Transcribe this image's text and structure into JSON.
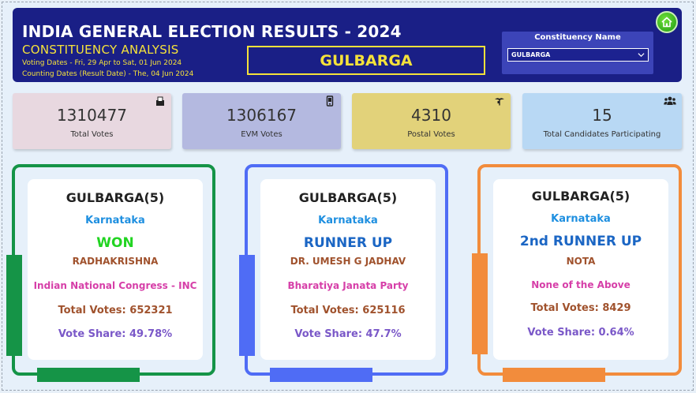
{
  "header": {
    "title": "INDIA GENERAL ELECTION RESULTS - 2024",
    "subtitle": "CONSTITUENCY ANALYSIS",
    "voting_dates": "Voting Dates - Fri, 29 Apr to Sat, 01 Jun 2024",
    "counting_dates": "Counting Dates (Result Date) - The, 04 Jun 2024",
    "constituency_display": "GULBARGA",
    "home_icon": "home-icon"
  },
  "slicer": {
    "label": "Constituency Name",
    "selected": "GULBARGA"
  },
  "kpis": [
    {
      "value": "1310477",
      "label": "Total Votes",
      "icon": "ballot-box-icon",
      "bg": "#e8d8e0"
    },
    {
      "value": "1306167",
      "label": "EVM Votes",
      "icon": "evm-device-icon",
      "bg": "#b4b9e0"
    },
    {
      "value": "4310",
      "label": "Postal Votes",
      "icon": "postal-icon",
      "bg": "#e2d27a"
    },
    {
      "value": "15",
      "label": "Total Candidates Participating",
      "icon": "people-icon",
      "bg": "#b8d8f4"
    }
  ],
  "results": [
    {
      "constituency": "GULBARGA(5)",
      "state": "Karnataka",
      "status": "WON",
      "candidate": "RADHAKRISHNA",
      "party": "Indian National Congress - INC",
      "total_votes": "Total Votes: 652321",
      "vote_share": "Vote Share: 49.78%",
      "frame_color": "#159447",
      "status_color": "#22d422"
    },
    {
      "constituency": "GULBARGA(5)",
      "state": "Karnataka",
      "status": "RUNNER UP",
      "candidate": "DR. UMESH G JADHAV",
      "party": "Bharatiya Janata Party",
      "total_votes": "Total Votes: 625116",
      "vote_share": "Vote Share: 47.7%",
      "frame_color": "#4f6cf5",
      "status_color": "#1b66c4"
    },
    {
      "constituency": "GULBARGA(5)",
      "state": "Karnataka",
      "status": "2nd RUNNER UP",
      "candidate": "NOTA",
      "party": "None of the Above",
      "total_votes": "Total Votes: 8429",
      "vote_share": "Vote Share: 0.64%",
      "frame_color": "#f28c3c",
      "status_color": "#1b66c4"
    }
  ],
  "colors": {
    "state": "#1e8fe0",
    "candidate": "#a0522d",
    "party": "#d63fa8",
    "total_votes": "#a0522d",
    "vote_share": "#7a58c8",
    "header_bg": "#1a1f86",
    "header_accent": "#f5e23a"
  }
}
